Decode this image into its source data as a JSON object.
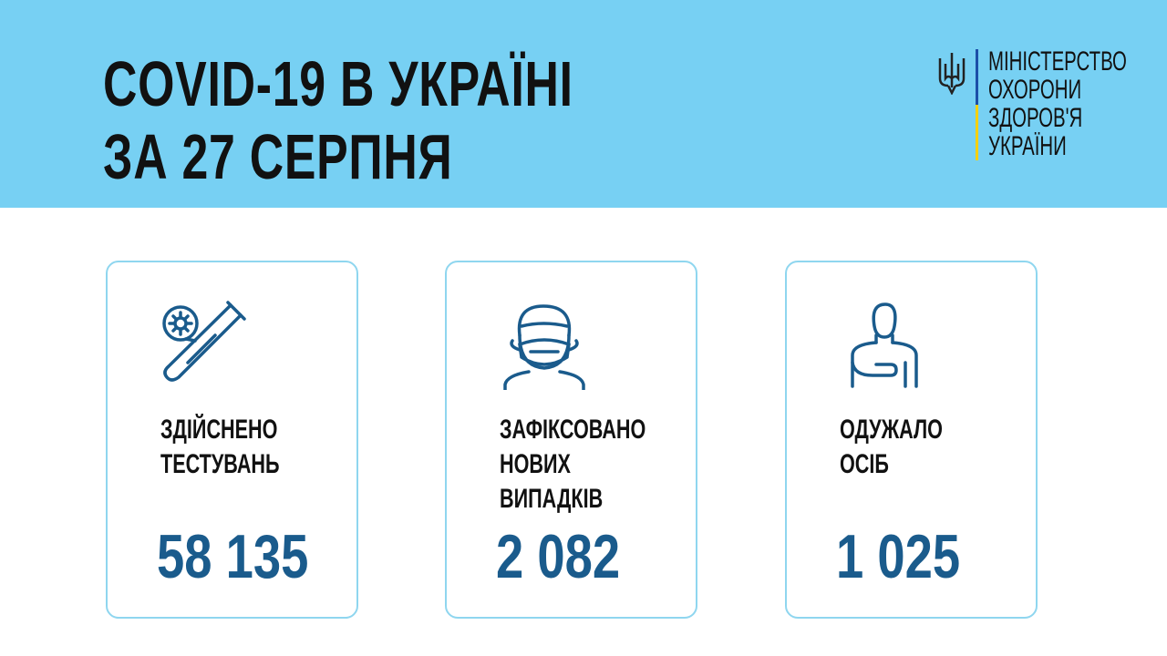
{
  "header": {
    "title_line1": "COVID-19 В УКРАЇНІ",
    "title_line2": "ЗА 27 СЕРПНЯ",
    "background": "#77d0f3"
  },
  "logo": {
    "icon": "trident-icon",
    "lines": [
      "МІНІСТЕРСТВО",
      "ОХОРОНИ",
      "ЗДОРОВ'Я",
      "УКРАЇНИ"
    ]
  },
  "cards": [
    {
      "icon": "test-tube-virus-icon",
      "label": [
        "ЗДІЙСНЕНО",
        "ТЕСТУВАНЬ"
      ],
      "value": "58 135"
    },
    {
      "icon": "masked-person-icon",
      "label": [
        "ЗАФІКСОВАНО",
        "НОВИХ",
        "ВИПАДКІВ"
      ],
      "value": "2 082"
    },
    {
      "icon": "recovered-person-icon",
      "label": [
        "ОДУЖАЛО",
        "ОСІБ"
      ],
      "value": "1 025"
    }
  ],
  "colors": {
    "number": "#1a5b8c",
    "card_border": "#8fd6ef",
    "icon": "#1a5b8c"
  }
}
